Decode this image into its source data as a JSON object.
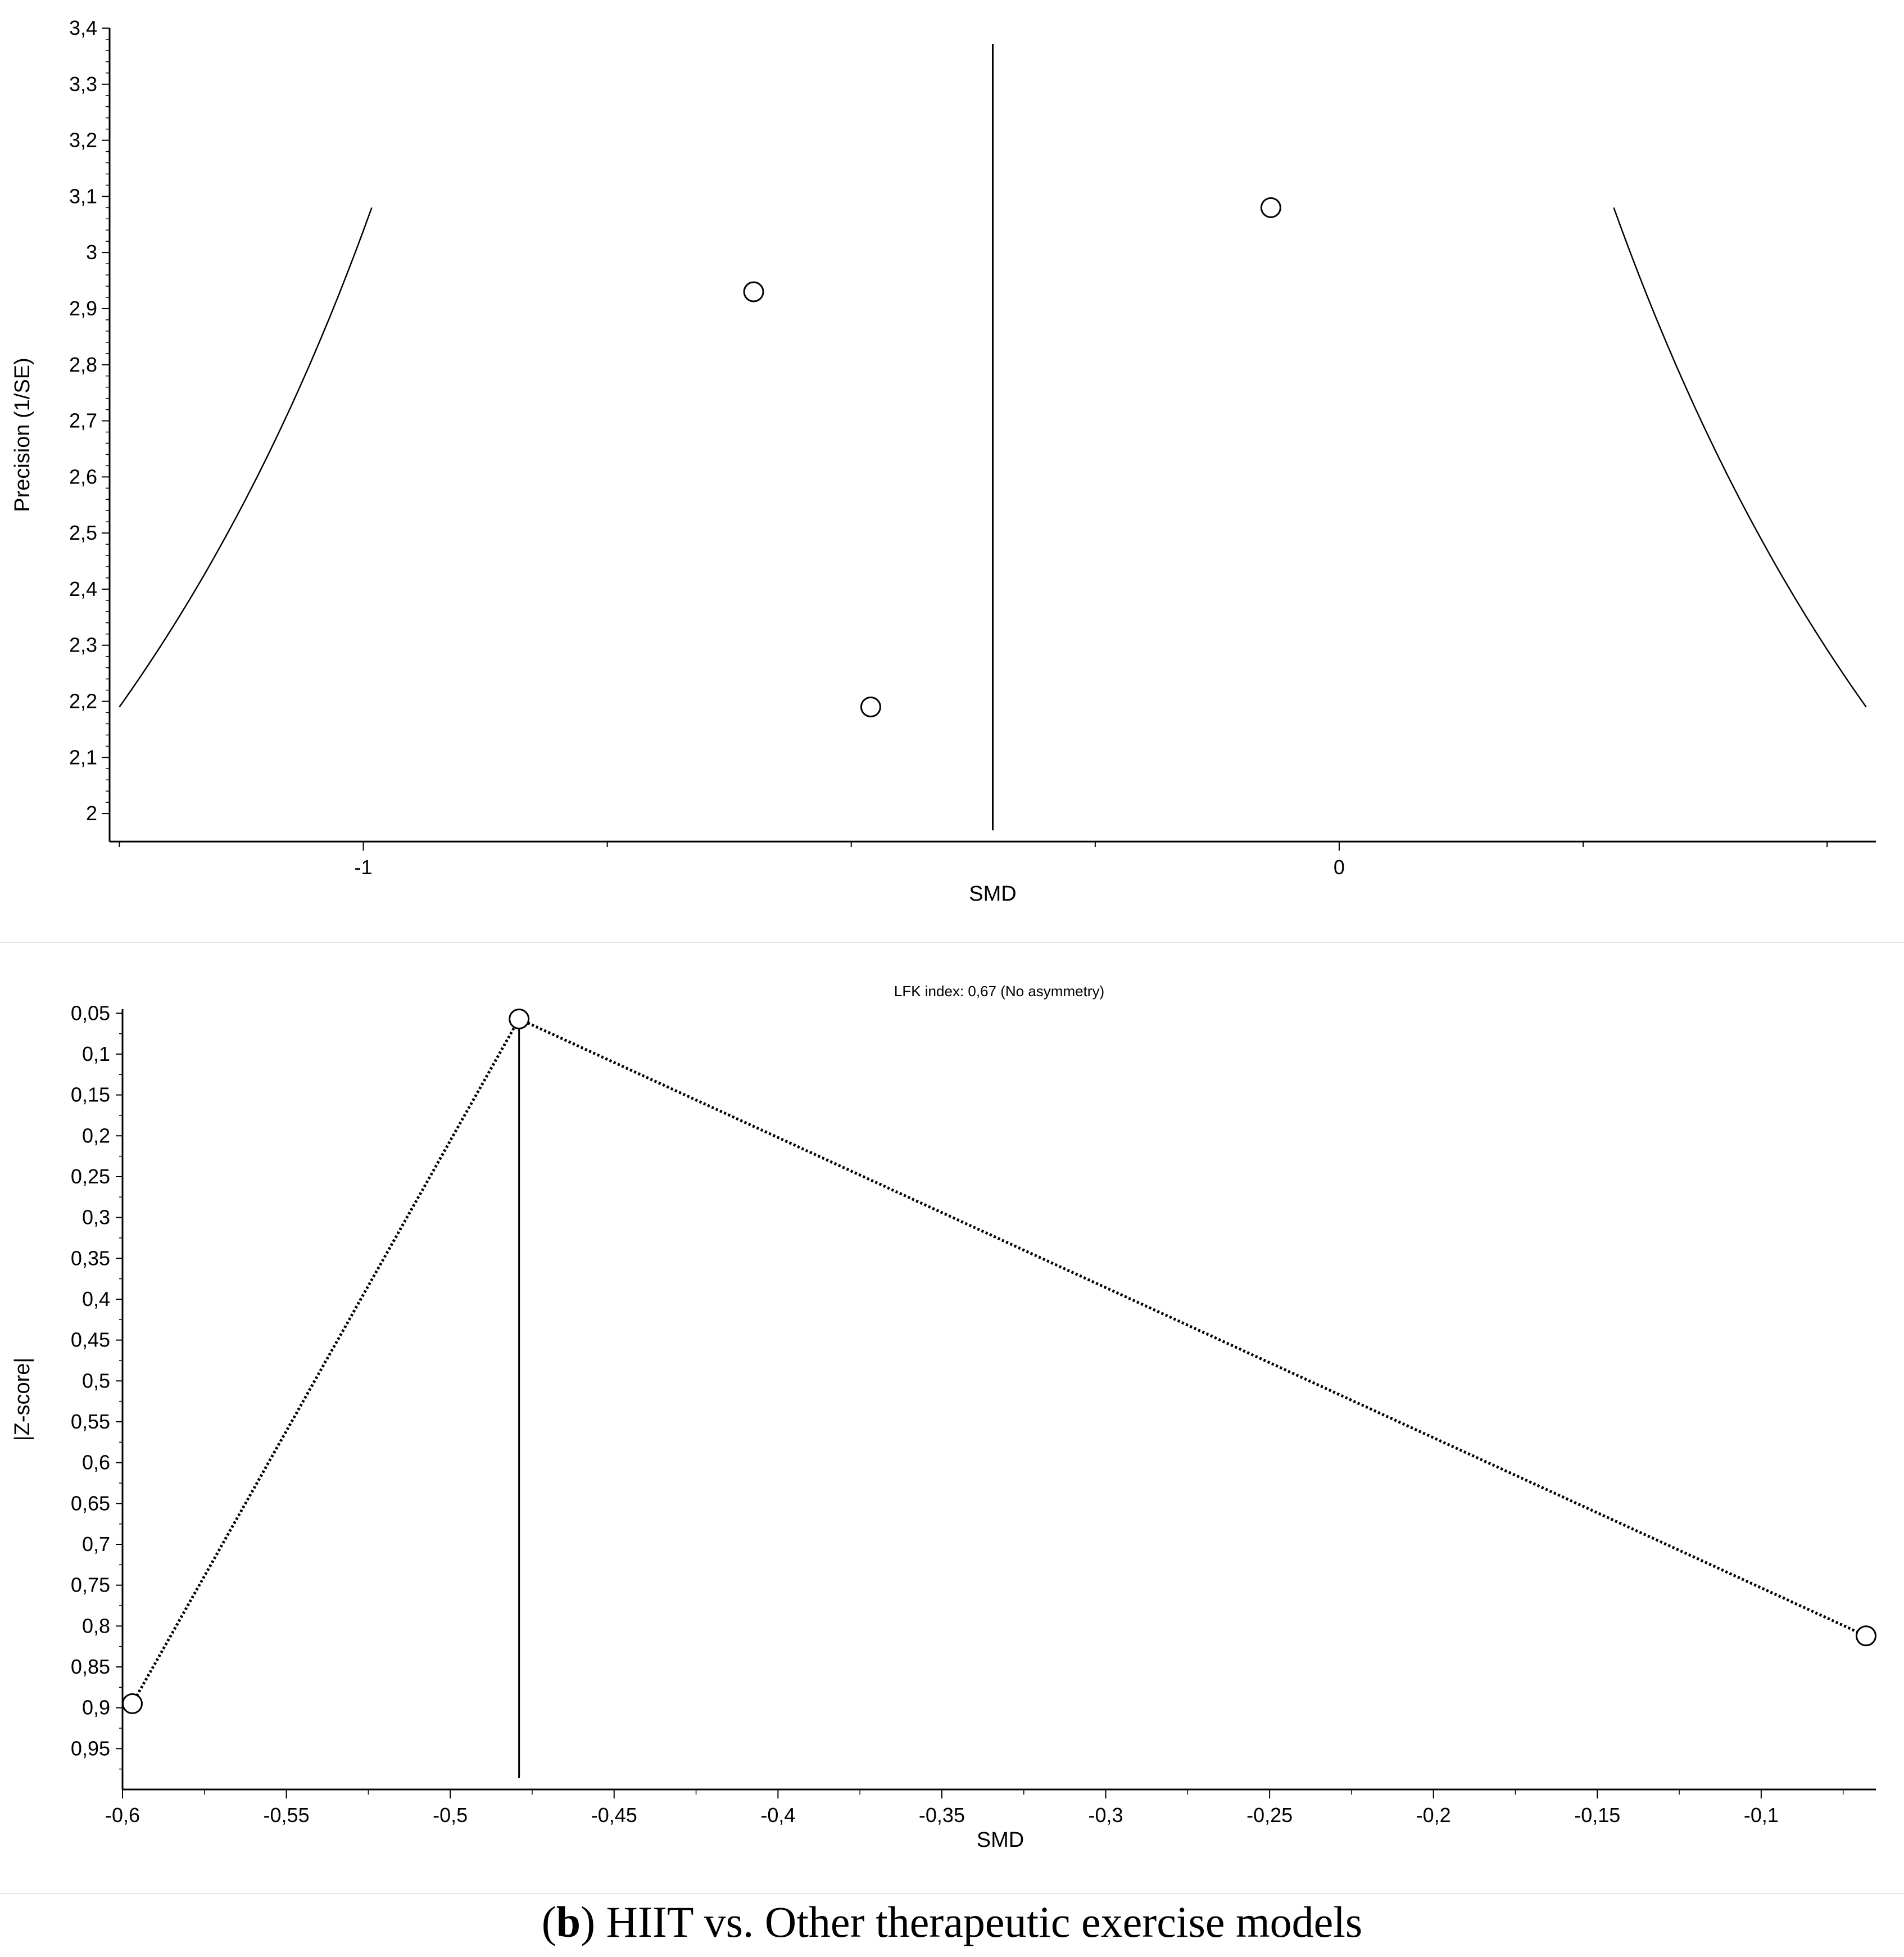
{
  "caption": {
    "label": "b",
    "text": ") HIIT vs. Other therapeutic exercise models",
    "open": "("
  },
  "chart_data": [
    {
      "type": "scatter",
      "kind": "funnel plot",
      "xlabel": "SMD",
      "ylabel": "Precision (1/SE)",
      "xlim": [
        -1.26,
        0.55
      ],
      "ylim": [
        1.95,
        3.4
      ],
      "x_ticks": [
        -1,
        0
      ],
      "x_tick_labels": [
        "-1",
        "0"
      ],
      "y_ticks": [
        2,
        2.1,
        2.2,
        2.3,
        2.4,
        2.5,
        2.6,
        2.7,
        2.8,
        2.9,
        3,
        3.1,
        3.2,
        3.3,
        3.4
      ],
      "y_tick_labels": [
        "2",
        "2,1",
        "2,2",
        "2,3",
        "2,4",
        "2,5",
        "2,6",
        "2,7",
        "2,8",
        "2,9",
        "3",
        "3,1",
        "3,2",
        "3,3",
        "3,4"
      ],
      "points": [
        {
          "x": -0.6,
          "y": 2.93
        },
        {
          "x": -0.48,
          "y": 2.19
        },
        {
          "x": -0.07,
          "y": 3.08
        }
      ],
      "pooled_smd": -0.355,
      "funnel_limits": {
        "precision_range": [
          2.19,
          3.08
        ],
        "z": 1.96
      },
      "grid": false
    },
    {
      "type": "line",
      "kind": "Doi plot",
      "title": "LFK index: 0,67 (No asymmetry)",
      "xlabel": "SMD",
      "ylabel": "|Z-score|",
      "xlim": [
        -0.6,
        -0.065
      ],
      "ylim": [
        0.045,
        1.0
      ],
      "y_inverted": true,
      "x_ticks": [
        -0.6,
        -0.55,
        -0.5,
        -0.45,
        -0.4,
        -0.35,
        -0.3,
        -0.25,
        -0.2,
        -0.15,
        -0.1
      ],
      "x_tick_labels": [
        "-0,6",
        "-0,55",
        "-0,5",
        "-0,45",
        "-0,4",
        "-0,35",
        "-0,3",
        "-0,25",
        "-0,2",
        "-0,15",
        "-0,1"
      ],
      "y_ticks": [
        0.05,
        0.1,
        0.15,
        0.2,
        0.25,
        0.3,
        0.35,
        0.4,
        0.45,
        0.5,
        0.55,
        0.6,
        0.65,
        0.7,
        0.75,
        0.8,
        0.85,
        0.9,
        0.95
      ],
      "y_tick_labels": [
        "0,05",
        "0,1",
        "0,15",
        "0,2",
        "0,25",
        "0,3",
        "0,35",
        "0,4",
        "0,45",
        "0,5",
        "0,55",
        "0,6",
        "0,65",
        "0,7",
        "0,75",
        "0,8",
        "0,85",
        "0,9",
        "0,95"
      ],
      "points": [
        {
          "x": -0.597,
          "y": 0.895
        },
        {
          "x": -0.479,
          "y": 0.057
        },
        {
          "x": -0.068,
          "y": 0.812
        }
      ],
      "reference_x": -0.479,
      "grid": false
    }
  ]
}
